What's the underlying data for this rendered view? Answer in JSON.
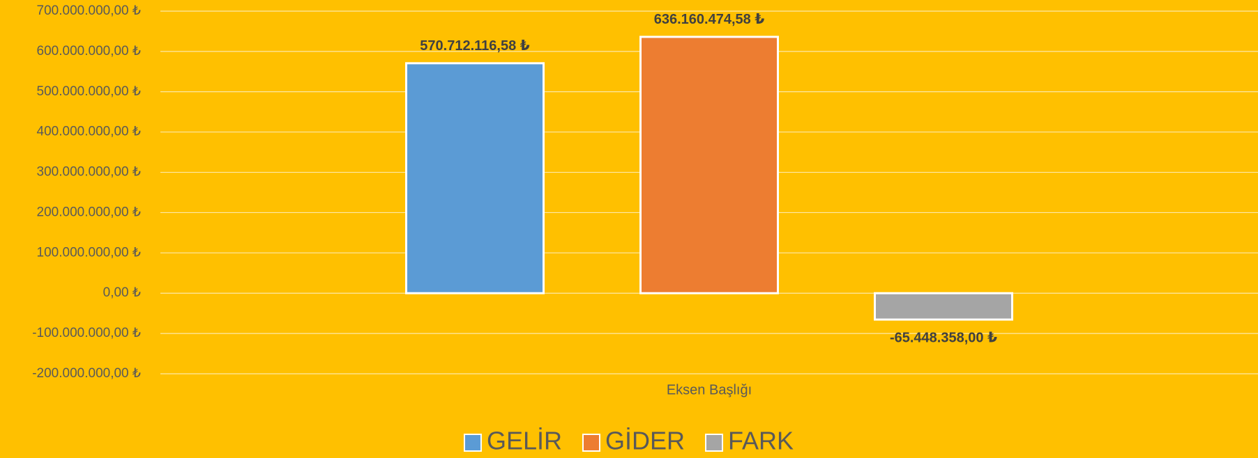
{
  "chart_data": {
    "type": "bar",
    "categories": [
      "Eksen Başlığı"
    ],
    "series": [
      {
        "name": "GELİR",
        "color": "#5b9bd5",
        "values": [
          570712116.58
        ],
        "value_labels": [
          "570.712.116,58 ₺"
        ]
      },
      {
        "name": "GİDER",
        "color": "#ed7d31",
        "values": [
          636160474.58
        ],
        "value_labels": [
          "636.160.474,58 ₺"
        ]
      },
      {
        "name": "FARK",
        "color": "#a5a5a5",
        "values": [
          -65448358.0
        ],
        "value_labels": [
          "-65.448.358,00 ₺"
        ]
      }
    ],
    "ylim": [
      -200000000,
      700000000
    ],
    "yticks": [
      {
        "value": -200000000,
        "label": "-200.000.000,00 ₺"
      },
      {
        "value": -100000000,
        "label": "-100.000.000,00 ₺"
      },
      {
        "value": 0,
        "label": "0,00 ₺"
      },
      {
        "value": 100000000,
        "label": "100.000.000,00 ₺"
      },
      {
        "value": 200000000,
        "label": "200.000.000,00 ₺"
      },
      {
        "value": 300000000,
        "label": "300.000.000,00 ₺"
      },
      {
        "value": 400000000,
        "label": "400.000.000,00 ₺"
      },
      {
        "value": 500000000,
        "label": "500.000.000,00 ₺"
      },
      {
        "value": 600000000,
        "label": "600.000.000,00 ₺"
      },
      {
        "value": 700000000,
        "label": "700.000.000,00 ₺"
      }
    ],
    "grid": true,
    "legend": "bottom"
  }
}
